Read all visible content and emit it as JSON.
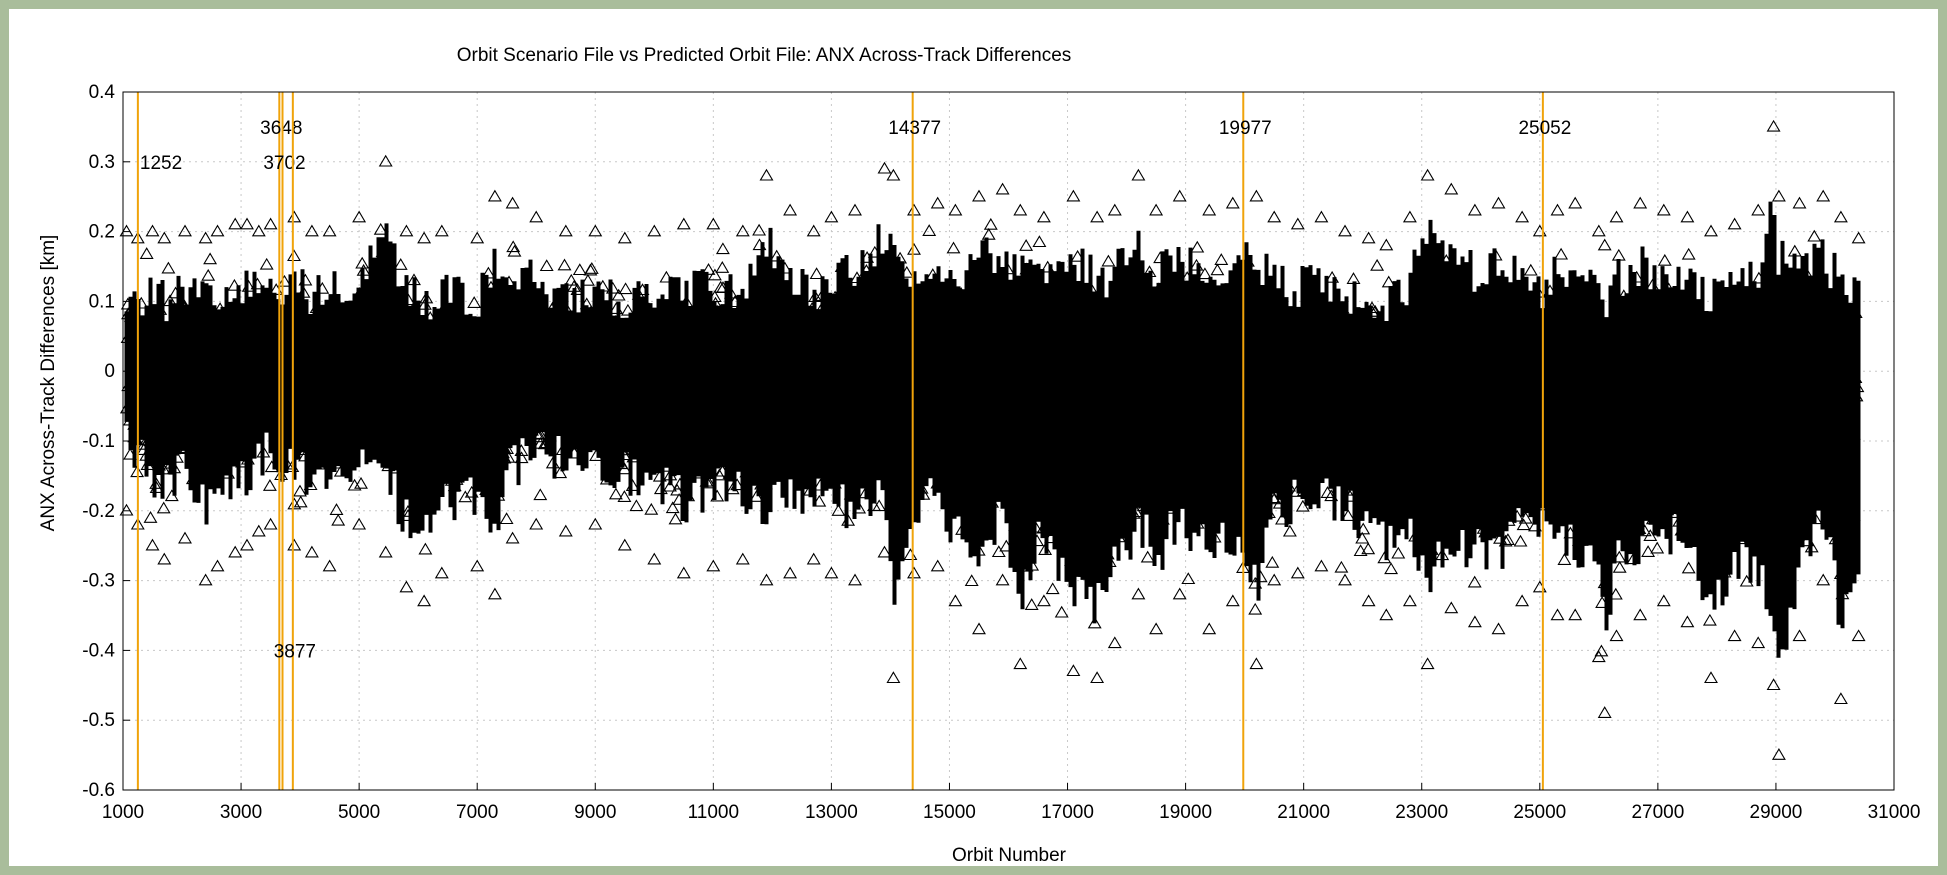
{
  "chart_data": {
    "type": "scatter",
    "title": "Orbit Scenario File vs Predicted Orbit File: ANX Across-Track Differences",
    "xlabel": "Orbit Number",
    "ylabel": "ANX Across-Track Differences [km]",
    "xlim": [
      1000,
      31000
    ],
    "ylim": [
      -0.6,
      0.4
    ],
    "x_ticks": [
      "1000",
      "3000",
      "5000",
      "7000",
      "9000",
      "11000",
      "13000",
      "15000",
      "17000",
      "19000",
      "21000",
      "23000",
      "25000",
      "27000",
      "29000",
      "31000"
    ],
    "y_ticks": [
      "0.4",
      "0.3",
      "0.2",
      "0.1",
      "0",
      "-0.1",
      "-0.2",
      "-0.3",
      "-0.4",
      "-0.5",
      "-0.6"
    ],
    "grid": true,
    "marker": "open-triangle",
    "marker_color": "#000000",
    "event_line_color": "#f0a30a",
    "events": [
      {
        "orbit": 1252,
        "label": "1252",
        "label_y": 0.29
      },
      {
        "orbit": 3648,
        "label": "3648",
        "label_y": 0.34
      },
      {
        "orbit": 3702,
        "label": "3702",
        "label_y": 0.29
      },
      {
        "orbit": 3877,
        "label": "3877",
        "label_y": -0.41
      },
      {
        "orbit": 14377,
        "label": "14377",
        "label_y": 0.34
      },
      {
        "orbit": 19977,
        "label": "19977",
        "label_y": 0.34
      },
      {
        "orbit": 25052,
        "label": "25052",
        "label_y": 0.34
      }
    ],
    "series": [
      {
        "x": [
          1060,
          1250,
          1500,
          1700,
          2050,
          2400,
          2600,
          2900,
          3100,
          3300,
          3500,
          3900,
          4200,
          4500,
          5000,
          5450,
          5800,
          6100,
          6400,
          7000,
          7300,
          7600,
          8000,
          8500,
          9000,
          9500,
          10000,
          10500,
          11000,
          11500,
          11900,
          12300,
          12700,
          13000,
          13400,
          13900,
          14050,
          14400,
          14800,
          15100,
          15500,
          15900,
          16200,
          16600,
          17100,
          17500,
          17800,
          18200,
          18500,
          18900,
          19400,
          19800,
          20200,
          20500,
          20900,
          21300,
          21700,
          22100,
          22400,
          22800,
          23100,
          23500,
          23900,
          24300,
          24700,
          25000,
          25300,
          25600,
          26000,
          26100,
          26300,
          26700,
          27100,
          27500,
          27900,
          28300,
          28700,
          28960,
          29050,
          29400,
          29800,
          30100,
          30400
        ],
        "max": [
          0.2,
          0.19,
          0.2,
          0.19,
          0.2,
          0.19,
          0.2,
          0.21,
          0.21,
          0.2,
          0.21,
          0.22,
          0.2,
          0.2,
          0.22,
          0.3,
          0.2,
          0.19,
          0.2,
          0.19,
          0.25,
          0.24,
          0.22,
          0.2,
          0.2,
          0.19,
          0.2,
          0.21,
          0.21,
          0.2,
          0.28,
          0.23,
          0.2,
          0.22,
          0.23,
          0.29,
          0.28,
          0.23,
          0.24,
          0.23,
          0.25,
          0.26,
          0.23,
          0.22,
          0.25,
          0.22,
          0.23,
          0.28,
          0.23,
          0.25,
          0.23,
          0.24,
          0.25,
          0.22,
          0.21,
          0.22,
          0.2,
          0.19,
          0.18,
          0.22,
          0.28,
          0.26,
          0.23,
          0.24,
          0.22,
          0.2,
          0.23,
          0.24,
          0.2,
          0.18,
          0.22,
          0.24,
          0.23,
          0.22,
          0.2,
          0.21,
          0.23,
          0.35,
          0.25,
          0.24,
          0.25,
          0.22,
          0.19
        ],
        "min": [
          -0.2,
          -0.22,
          -0.25,
          -0.27,
          -0.24,
          -0.3,
          -0.28,
          -0.26,
          -0.25,
          -0.23,
          -0.22,
          -0.25,
          -0.26,
          -0.28,
          -0.22,
          -0.26,
          -0.31,
          -0.33,
          -0.29,
          -0.28,
          -0.32,
          -0.24,
          -0.22,
          -0.23,
          -0.22,
          -0.25,
          -0.27,
          -0.29,
          -0.28,
          -0.27,
          -0.3,
          -0.29,
          -0.27,
          -0.29,
          -0.3,
          -0.26,
          -0.44,
          -0.29,
          -0.28,
          -0.33,
          -0.37,
          -0.3,
          -0.42,
          -0.33,
          -0.43,
          -0.44,
          -0.39,
          -0.32,
          -0.37,
          -0.32,
          -0.37,
          -0.33,
          -0.42,
          -0.3,
          -0.29,
          -0.28,
          -0.3,
          -0.33,
          -0.35,
          -0.33,
          -0.42,
          -0.34,
          -0.36,
          -0.37,
          -0.33,
          -0.31,
          -0.35,
          -0.35,
          -0.41,
          -0.49,
          -0.38,
          -0.35,
          -0.33,
          -0.36,
          -0.44,
          -0.38,
          -0.39,
          -0.45,
          -0.55,
          -0.38,
          -0.3,
          -0.47,
          -0.38
        ]
      }
    ]
  }
}
